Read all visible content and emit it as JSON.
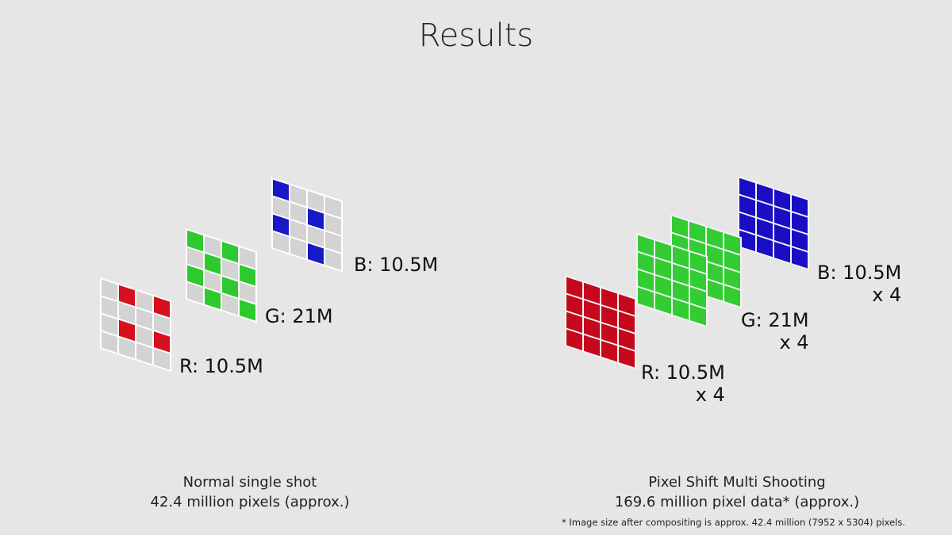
{
  "title": "Results",
  "left": {
    "layers": [
      {
        "color": "r",
        "label": "R: 10.5M",
        "pattern": [
          0,
          1,
          0,
          1,
          0,
          0,
          0,
          0,
          0,
          1,
          0,
          1,
          0,
          0,
          0,
          0
        ]
      },
      {
        "color": "g",
        "label": "G: 21M",
        "pattern": [
          1,
          0,
          1,
          0,
          0,
          1,
          0,
          1,
          1,
          0,
          1,
          0,
          0,
          1,
          0,
          1
        ]
      },
      {
        "color": "b",
        "label": "B: 10.5M",
        "pattern": [
          1,
          0,
          0,
          0,
          0,
          0,
          1,
          0,
          1,
          0,
          0,
          0,
          0,
          0,
          1,
          0
        ]
      }
    ],
    "caption_line1": "Normal single shot",
    "caption_line2": "42.4 million pixels (approx.)"
  },
  "right": {
    "layers": [
      {
        "color": "r",
        "label": "R: 10.5M",
        "multiplier": "x 4"
      },
      {
        "color": "g",
        "label": "G: 21M",
        "multiplier": "x 4"
      },
      {
        "color": "b",
        "label": "B: 10.5M",
        "multiplier": "x 4"
      }
    ],
    "caption_line1": "Pixel Shift Multi Shooting",
    "caption_line2": "169.6 million pixel data* (approx.)",
    "footnote": "* Image size after compositing is approx. 42.4 million (7952 x 5304) pixels."
  },
  "colors": {
    "red": "#d6101f",
    "green": "#2ec92e",
    "blue": "#1818c8",
    "gray_cell": "#d3d3d3",
    "background": "#e6e6e6"
  }
}
